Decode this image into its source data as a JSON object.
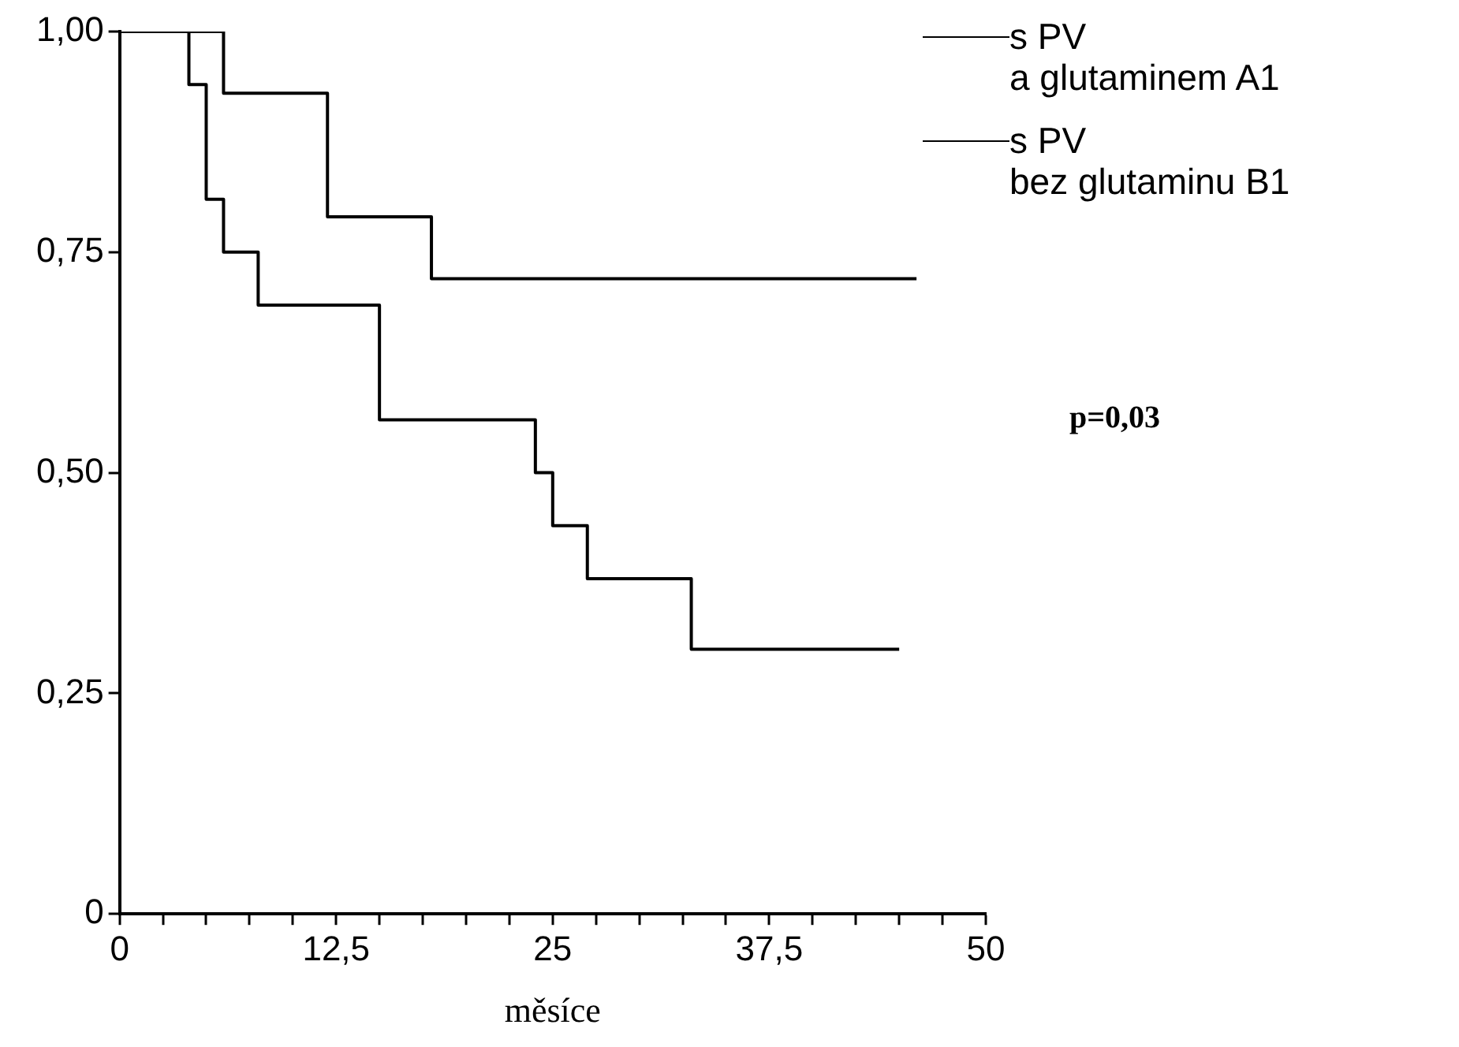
{
  "chart_data": {
    "type": "step",
    "xlabel": "měsíce",
    "legend": "top right",
    "marker": "none",
    "line_style": "solid",
    "xlim": [
      0,
      50
    ],
    "ylim": [
      0,
      1
    ],
    "xticks": [
      0,
      {
        "value": 2.5,
        "label": null
      },
      {
        "value": 5,
        "label": null
      },
      {
        "value": 7.5,
        "label": null
      },
      {
        "value": 10,
        "label": null
      },
      {
        "value": 12.5,
        "label": "12,5"
      },
      {
        "value": 15,
        "label": null
      },
      {
        "value": 17.5,
        "label": null
      },
      {
        "value": 20,
        "label": null
      },
      {
        "value": 22.5,
        "label": null
      },
      25,
      {
        "value": 27.5,
        "label": null
      },
      {
        "value": 30,
        "label": null
      },
      {
        "value": 32.5,
        "label": null
      },
      {
        "value": 35,
        "label": null
      },
      {
        "value": 37.5,
        "label": "37,5"
      },
      {
        "value": 40,
        "label": null
      },
      {
        "value": 42.5,
        "label": null
      },
      {
        "value": 45,
        "label": null
      },
      {
        "value": 47.5,
        "label": null
      },
      50
    ],
    "yticks": [
      0,
      {
        "value": 0.25,
        "label": "0,25"
      },
      {
        "value": 0.5,
        "label": "0,50"
      },
      {
        "value": 0.75,
        "label": "0,75"
      },
      {
        "value": 1,
        "label": "1,00"
      }
    ],
    "series": [
      {
        "name": "s PV\na glutaminem A1",
        "color": "#000000",
        "x": [
          0,
          6,
          12,
          18,
          46
        ],
        "values": [
          1,
          0.93,
          0.79,
          0.72,
          0.72
        ]
      },
      {
        "name": "s PV\nbez glutaminu B1",
        "color": "#000000",
        "x": [
          0,
          4,
          5,
          6,
          8,
          15,
          24,
          25,
          27,
          33,
          45
        ],
        "values": [
          1,
          0.94,
          0.81,
          0.75,
          0.69,
          0.56,
          0.5,
          0.44,
          0.38,
          0.3,
          0.3
        ]
      }
    ],
    "annotations": [
      "p=0,03"
    ]
  }
}
